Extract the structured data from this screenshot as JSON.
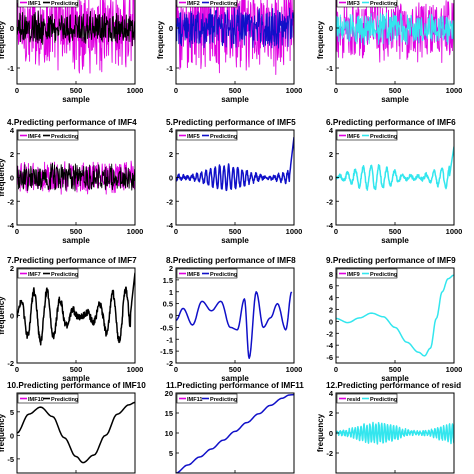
{
  "colors": {
    "imf": "#e000e0",
    "black": "#000000",
    "blue": "#1010c8",
    "cyan": "#33e6ee",
    "background": "#ffffff",
    "axis": "#000000"
  },
  "chart_data": [
    {
      "type": "line",
      "title": "",
      "xlabel": "sample",
      "ylabel": "frequency",
      "xticks": [
        0,
        500,
        1000
      ],
      "yticks": [
        -1,
        0,
        1
      ],
      "xlim": [
        0,
        1000
      ],
      "ylim": [
        -1.4,
        1.4
      ],
      "legend": {
        "placement": "top-left",
        "entries": [
          "IMF1",
          "Predicting"
        ]
      },
      "series": [
        {
          "name": "IMF1",
          "color": "#e000e0",
          "kind": "noise",
          "amp": 1.2
        },
        {
          "name": "Predicting",
          "color": "#000000",
          "kind": "noise",
          "amp": 0.45
        }
      ]
    },
    {
      "type": "line",
      "title": "",
      "xlabel": "sample",
      "ylabel": "frequency",
      "xticks": [
        0,
        500,
        1000
      ],
      "yticks": [
        -1,
        0,
        1
      ],
      "xlim": [
        0,
        1000
      ],
      "ylim": [
        -1.4,
        1.4
      ],
      "legend": {
        "placement": "top-left",
        "entries": [
          "IMF2",
          "Predicting"
        ]
      },
      "series": [
        {
          "name": "IMF2",
          "color": "#e000e0",
          "kind": "noise",
          "amp": 1.2
        },
        {
          "name": "Predicting",
          "color": "#1010c8",
          "kind": "noise",
          "amp": 0.55
        }
      ]
    },
    {
      "type": "line",
      "title": "",
      "xlabel": "sample",
      "ylabel": "frequency",
      "xticks": [
        0,
        500,
        1000
      ],
      "yticks": [
        -1,
        0,
        1
      ],
      "xlim": [
        0,
        1000
      ],
      "ylim": [
        -1.4,
        1.4
      ],
      "legend": {
        "placement": "top-left",
        "entries": [
          "IMF3",
          "Predicting"
        ]
      },
      "series": [
        {
          "name": "IMF3",
          "color": "#e000e0",
          "kind": "noise",
          "amp": 0.9
        },
        {
          "name": "Predicting",
          "color": "#33e6ee",
          "kind": "noise",
          "amp": 0.45
        }
      ]
    },
    {
      "type": "line",
      "title": "4.Predicting performance of IMF4",
      "xlabel": "sample",
      "ylabel": "frequency",
      "xticks": [
        0,
        500,
        1000
      ],
      "yticks": [
        -4,
        -2,
        0,
        2,
        4
      ],
      "xlim": [
        0,
        1000
      ],
      "ylim": [
        -4,
        4
      ],
      "legend": {
        "placement": "top-left",
        "entries": [
          "IMF4",
          "Predicting"
        ]
      },
      "series": [
        {
          "name": "IMF4",
          "color": "#e000e0",
          "kind": "noise",
          "amp": 1.5
        },
        {
          "name": "Predicting",
          "color": "#000000",
          "kind": "noise",
          "amp": 1.3
        }
      ]
    },
    {
      "type": "line",
      "title": "5.Predicting performance of IMF5",
      "xlabel": "sample",
      "ylabel": "",
      "xticks": [
        0,
        500,
        1000
      ],
      "yticks": [
        -4,
        -2,
        0,
        2,
        4
      ],
      "xlim": [
        0,
        1000
      ],
      "ylim": [
        -4,
        4
      ],
      "legend": {
        "placement": "top-left",
        "entries": [
          "IMF5",
          "Predicting"
        ]
      },
      "series": [
        {
          "name": "IMF5",
          "color": "#e000e0",
          "kind": "hidden"
        },
        {
          "name": "Predicting",
          "color": "#1010c8",
          "kind": "osc",
          "amp": 1.0,
          "cycles": 26,
          "spike": 3.4
        }
      ]
    },
    {
      "type": "line",
      "title": "6.Predicting performance of IMF6",
      "xlabel": "sample",
      "ylabel": "",
      "xticks": [
        0,
        500,
        1000
      ],
      "yticks": [
        -4,
        -2,
        0,
        2,
        4
      ],
      "xlim": [
        0,
        1000
      ],
      "ylim": [
        -4,
        4
      ],
      "legend": {
        "placement": "top-left",
        "entries": [
          "IMF6",
          "Predicting"
        ]
      },
      "series": [
        {
          "name": "IMF6",
          "color": "#e000e0",
          "kind": "hidden"
        },
        {
          "name": "Predicting",
          "color": "#33e6ee",
          "kind": "osc",
          "amp": 1.0,
          "cycles": 15,
          "spike": 2.6
        }
      ]
    },
    {
      "type": "line",
      "title": "7.Predicting performance of IMF7",
      "xlabel": "sample",
      "ylabel": "frequency",
      "xticks": [
        0,
        500,
        1000
      ],
      "yticks": [
        -2,
        0,
        2
      ],
      "xlim": [
        0,
        1000
      ],
      "ylim": [
        -2,
        2
      ],
      "legend": {
        "placement": "top-left",
        "entries": [
          "IMF7",
          "Predicting"
        ]
      },
      "series": [
        {
          "name": "IMF7",
          "color": "#e000e0",
          "kind": "hidden"
        },
        {
          "name": "Predicting",
          "color": "#000000",
          "kind": "osc",
          "amp": 1.1,
          "cycles": 9,
          "spike": 1.8
        }
      ]
    },
    {
      "type": "line",
      "title": "8.Predicting performance of IMF8",
      "xlabel": "sample",
      "ylabel": "",
      "xticks": [
        0,
        500,
        1000
      ],
      "yticks": [
        -2,
        -1.5,
        -1,
        -0.5,
        0,
        0.5,
        1,
        1.5,
        2
      ],
      "xlim": [
        0,
        1000
      ],
      "ylim": [
        -2,
        2
      ],
      "legend": {
        "placement": "top-left",
        "entries": [
          "IMF8",
          "Predicting"
        ]
      },
      "series": [
        {
          "name": "IMF8",
          "color": "#e000e0",
          "kind": "hidden"
        },
        {
          "name": "Predicting",
          "color": "#1010c8",
          "kind": "pts",
          "points": [
            [
              0,
              -0.2
            ],
            [
              60,
              0.3
            ],
            [
              140,
              -0.4
            ],
            [
              220,
              0.6
            ],
            [
              300,
              0.2
            ],
            [
              380,
              0.6
            ],
            [
              460,
              -0.5
            ],
            [
              520,
              -0.6
            ],
            [
              580,
              0.7
            ],
            [
              620,
              -1.8
            ],
            [
              680,
              1.0
            ],
            [
              740,
              -0.5
            ],
            [
              800,
              -0.1
            ],
            [
              860,
              0.5
            ],
            [
              930,
              -0.6
            ],
            [
              980,
              1.0
            ]
          ]
        }
      ]
    },
    {
      "type": "line",
      "title": "9.Predicting performance of IMF9",
      "xlabel": "sample",
      "ylabel": "",
      "xticks": [
        0,
        500,
        1000
      ],
      "yticks": [
        -6,
        -4,
        -2,
        0,
        2,
        4,
        6,
        8
      ],
      "xlim": [
        0,
        1000
      ],
      "ylim": [
        -7,
        9
      ],
      "legend": {
        "placement": "top-left",
        "entries": [
          "IMF9",
          "Predicting"
        ]
      },
      "series": [
        {
          "name": "IMF9",
          "color": "#e000e0",
          "kind": "hidden"
        },
        {
          "name": "Predicting",
          "color": "#33e6ee",
          "kind": "pts",
          "points": [
            [
              0,
              0.5
            ],
            [
              100,
              -0.2
            ],
            [
              200,
              0.6
            ],
            [
              300,
              1.4
            ],
            [
              400,
              0.8
            ],
            [
              500,
              -1.0
            ],
            [
              600,
              -3.5
            ],
            [
              700,
              -5.2
            ],
            [
              750,
              -5.8
            ],
            [
              800,
              -4.5
            ],
            [
              850,
              0.5
            ],
            [
              900,
              5.0
            ],
            [
              950,
              7.2
            ],
            [
              1000,
              7.8
            ]
          ]
        }
      ]
    },
    {
      "type": "line",
      "title": "10.Predicting performance of IMF10",
      "xlabel": "",
      "ylabel": "frequency",
      "xticks": [
        0,
        500,
        1000
      ],
      "yticks": [
        -5,
        0,
        5
      ],
      "xlim": [
        0,
        1000
      ],
      "ylim": [
        -8,
        9
      ],
      "legend": {
        "placement": "top-left",
        "entries": [
          "IMF10",
          "Predicting"
        ]
      },
      "series": [
        {
          "name": "IMF10",
          "color": "#e000e0",
          "kind": "hidden"
        },
        {
          "name": "Predicting",
          "color": "#000000",
          "kind": "pts",
          "points": [
            [
              0,
              0.5
            ],
            [
              100,
              4.5
            ],
            [
              200,
              6.0
            ],
            [
              300,
              4.0
            ],
            [
              400,
              -0.5
            ],
            [
              500,
              -4.5
            ],
            [
              560,
              -5.8
            ],
            [
              650,
              -4.2
            ],
            [
              750,
              0.0
            ],
            [
              850,
              4.5
            ],
            [
              950,
              6.5
            ],
            [
              1000,
              7.0
            ]
          ]
        }
      ]
    },
    {
      "type": "line",
      "title": "11.Predicting performance of IMF11",
      "xlabel": "",
      "ylabel": "",
      "xticks": [
        0,
        500,
        1000
      ],
      "yticks": [
        0,
        5,
        10,
        15,
        20
      ],
      "xlim": [
        0,
        1000
      ],
      "ylim": [
        0,
        20
      ],
      "legend": {
        "placement": "top-left",
        "entries": [
          "IMF11",
          "Predicting"
        ]
      },
      "series": [
        {
          "name": "IMF11",
          "color": "#e000e0",
          "kind": "hidden"
        },
        {
          "name": "Predicting",
          "color": "#1010c8",
          "kind": "pts",
          "points": [
            [
              0,
              0.0
            ],
            [
              100,
              2.0
            ],
            [
              200,
              4.0
            ],
            [
              300,
              6.0
            ],
            [
              400,
              8.2
            ],
            [
              500,
              10.4
            ],
            [
              600,
              12.6
            ],
            [
              700,
              14.8
            ],
            [
              800,
              16.9
            ],
            [
              900,
              18.7
            ],
            [
              960,
              19.5
            ],
            [
              1000,
              19.6
            ]
          ]
        }
      ]
    },
    {
      "type": "line",
      "title": "12.Predicting performance of resid",
      "xlabel": "",
      "ylabel": "frequency",
      "xticks": [
        0,
        500,
        1000
      ],
      "yticks": [
        -4,
        -2,
        0,
        2,
        4
      ],
      "xlim": [
        0,
        1000
      ],
      "ylim": [
        -4,
        4
      ],
      "legend": {
        "placement": "top-left",
        "entries": [
          "resid",
          "Predicting"
        ]
      },
      "series": [
        {
          "name": "resid",
          "color": "#e000e0",
          "kind": "hidden"
        },
        {
          "name": "Predicting",
          "color": "#33e6ee",
          "kind": "osc",
          "amp": 1.0,
          "cycles": 40,
          "spike": 0
        }
      ]
    }
  ]
}
